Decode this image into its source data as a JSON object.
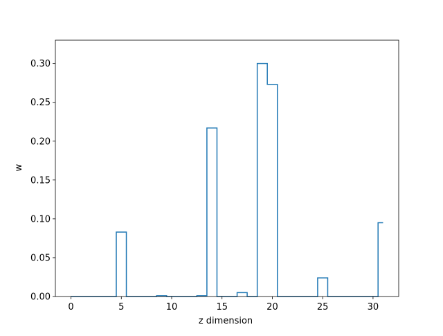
{
  "chart_data": {
    "type": "step",
    "xlabel": "z dimension",
    "ylabel": "w",
    "xlim": [
      -1.55,
      32.55
    ],
    "ylim": [
      0,
      0.33
    ],
    "xticks": [
      0,
      5,
      10,
      15,
      20,
      25,
      30
    ],
    "yticks": [
      0.0,
      0.05,
      0.1,
      0.15,
      0.2,
      0.25,
      0.3
    ],
    "xtick_labels": [
      "0",
      "5",
      "10",
      "15",
      "20",
      "25",
      "30"
    ],
    "ytick_labels": [
      "0.00",
      "0.05",
      "0.10",
      "0.15",
      "0.20",
      "0.25",
      "0.30"
    ],
    "grid": false,
    "step_where": "mid",
    "series": [
      {
        "color": "#1f77b4",
        "x": [
          0,
          1,
          2,
          3,
          4,
          5,
          6,
          7,
          8,
          9,
          10,
          11,
          12,
          13,
          14,
          15,
          16,
          17,
          18,
          19,
          20,
          21,
          22,
          23,
          24,
          25,
          26,
          27,
          28,
          29,
          30,
          31
        ],
        "values": [
          0,
          0,
          0,
          0,
          0,
          0.083,
          0,
          0,
          0,
          0.001,
          0,
          0,
          0,
          0.001,
          0.217,
          0,
          0,
          0.005,
          0,
          0.3,
          0.273,
          0,
          0,
          0,
          0,
          0.024,
          0,
          0,
          0,
          0,
          0,
          0.095
        ]
      }
    ]
  }
}
